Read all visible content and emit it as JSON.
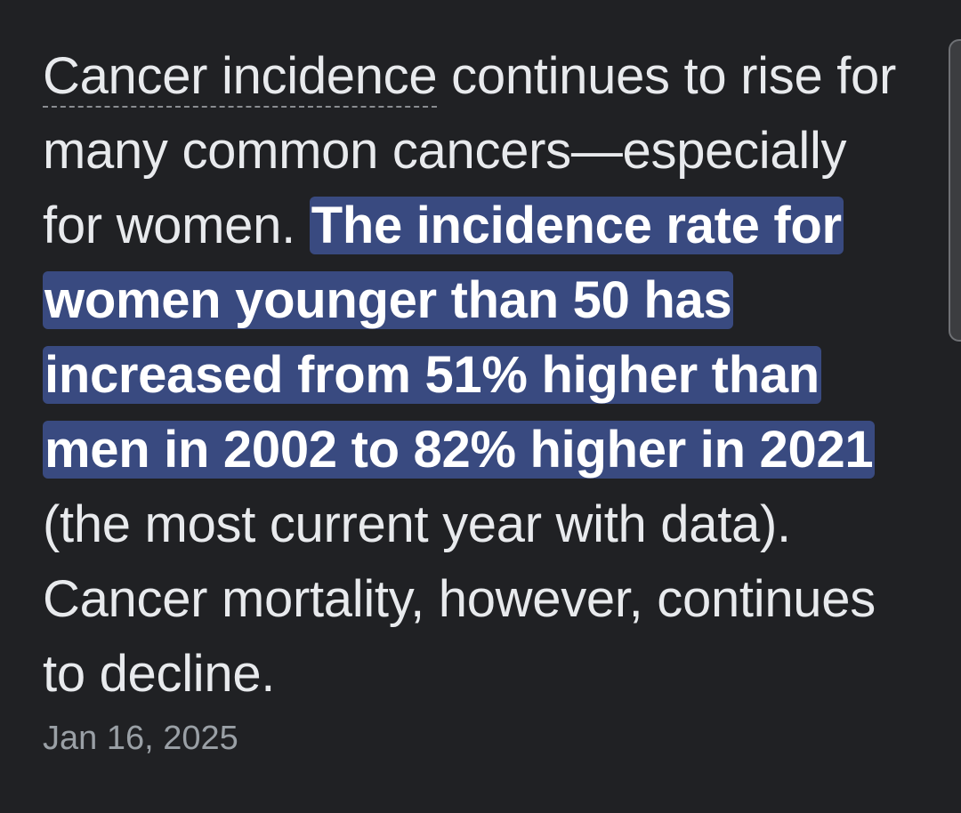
{
  "snippet": {
    "linked_term": "Cancer incidence",
    "text_after_term": " continues to rise for many common cancers—especially for women. ",
    "highlighted_text": "The incidence rate for women younger than 50 has increased from 51% higher than men in 2002 to 82% higher in 2021",
    "text_after_highlight": " (the most current year with data). Cancer mortality, however, continues to decline."
  },
  "date": "Jan 16, 2025",
  "colors": {
    "background": "#202124",
    "text": "#e8eaed",
    "highlight": "#394a80",
    "date_text": "#9aa0a6"
  }
}
